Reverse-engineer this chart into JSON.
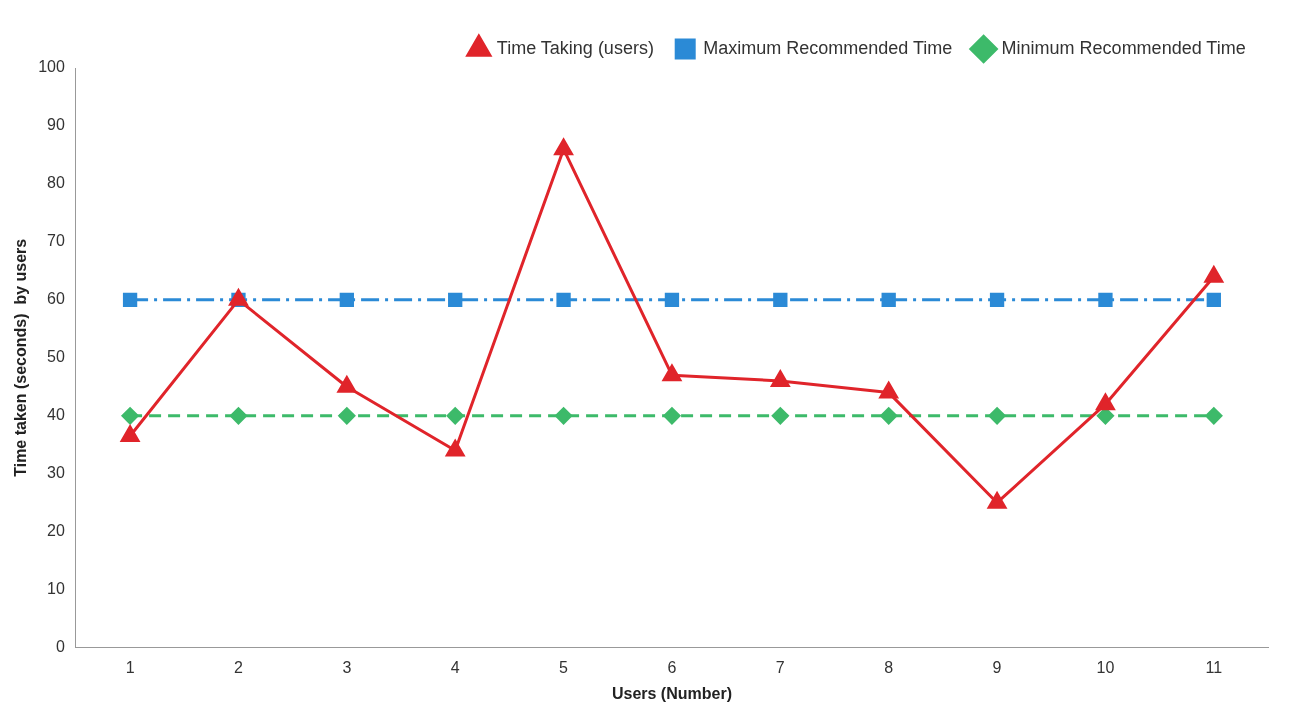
{
  "chart_data": {
    "type": "line",
    "xlabel": "Users (Number)",
    "ylabel": "Time taken (seconds)  by users",
    "categories": [
      "1",
      "2",
      "3",
      "4",
      "5",
      "6",
      "7",
      "8",
      "9",
      "10",
      "11"
    ],
    "series": [
      {
        "name": "Minimum Recommended Time",
        "color": "#3dba6a",
        "marker": "diamond",
        "line_style": "dashed",
        "values": [
          40,
          40,
          40,
          40,
          40,
          40,
          40,
          40,
          40,
          40,
          40
        ]
      },
      {
        "name": "Maximum Recommended Time",
        "color": "#2b8ad6",
        "marker": "square",
        "line_style": "dashdot",
        "values": [
          60,
          60,
          60,
          60,
          60,
          60,
          60,
          60,
          60,
          60,
          60
        ]
      },
      {
        "name": "Time Taking (users)",
        "color": "#e0242a",
        "marker": "triangle",
        "line_style": "solid",
        "values": [
          36.5,
          60,
          45,
          34,
          86,
          47,
          46,
          44,
          25,
          42,
          64
        ]
      }
    ],
    "ylim": [
      0,
      100
    ],
    "yticks": [
      0,
      10,
      20,
      30,
      40,
      50,
      60,
      70,
      80,
      90,
      100
    ],
    "grid": false,
    "legend": "top right"
  }
}
